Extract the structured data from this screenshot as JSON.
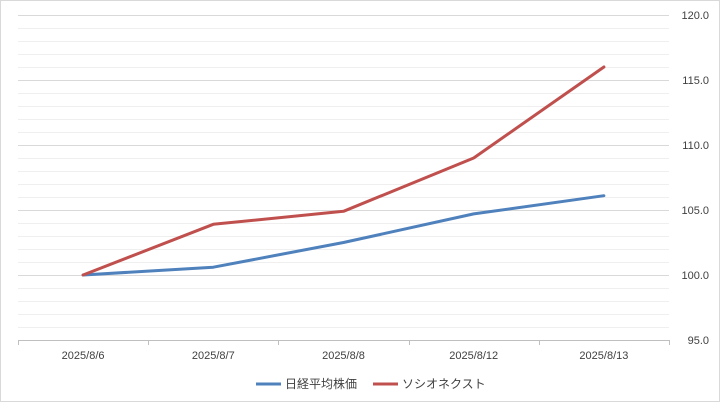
{
  "chart_data": {
    "type": "line",
    "categories": [
      "2025/8/6",
      "2025/8/7",
      "2025/8/8",
      "2025/8/12",
      "2025/8/13"
    ],
    "series": [
      {
        "name": "日経平均株価",
        "values": [
          100.0,
          100.6,
          102.5,
          104.7,
          106.1
        ],
        "color": "#4f81bd"
      },
      {
        "name": "ソシオネクスト",
        "values": [
          100.0,
          103.9,
          104.9,
          109.0,
          116.0
        ],
        "color": "#c0504d"
      }
    ],
    "ylim": [
      95.0,
      120.0
    ],
    "y_ticks": [
      "95.0",
      "100.0",
      "105.0",
      "110.0",
      "115.0",
      "120.0"
    ],
    "y_axis_side": "right",
    "grid": true,
    "legend_position": "bottom",
    "title": "",
    "xlabel": "",
    "ylabel": ""
  }
}
